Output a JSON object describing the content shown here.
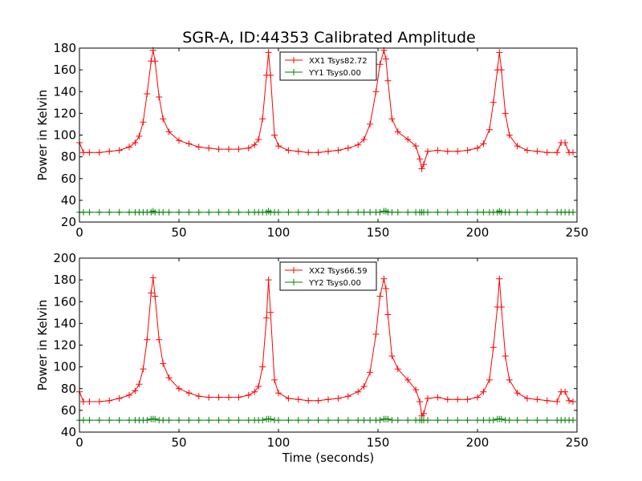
{
  "title": "SGR-A, ID:44353 Calibrated Amplitude",
  "chart_data": [
    {
      "type": "line",
      "ylabel": "Power in Kelvin",
      "xlabel": "",
      "xlim": [
        0,
        250
      ],
      "ylim": [
        20,
        180
      ],
      "xticks": [
        "0",
        "50",
        "100",
        "150",
        "200",
        "250"
      ],
      "yticks": [
        "20",
        "40",
        "60",
        "80",
        "100",
        "120",
        "140",
        "160",
        "180"
      ],
      "grid": false,
      "legend_position": "top-center",
      "x": [
        0,
        2,
        5,
        10,
        15,
        20,
        25,
        28,
        30,
        32,
        34,
        36,
        37,
        38,
        40,
        42,
        45,
        50,
        55,
        60,
        65,
        70,
        75,
        80,
        85,
        88,
        90,
        92,
        94,
        95,
        96,
        98,
        100,
        105,
        110,
        115,
        120,
        125,
        130,
        135,
        140,
        143,
        146,
        149,
        151,
        153,
        154,
        155,
        157,
        160,
        165,
        169,
        171,
        172,
        173,
        175,
        180,
        185,
        190,
        195,
        200,
        203,
        206,
        208,
        210,
        211,
        212,
        214,
        216,
        220,
        225,
        230,
        235,
        240,
        242,
        244,
        246,
        248
      ],
      "series": [
        {
          "name": "XX1 Tsys82.72",
          "color": "#ff0000",
          "values": [
            93,
            84,
            84,
            84,
            85,
            86,
            89,
            93,
            99,
            112,
            138,
            168,
            178,
            168,
            135,
            115,
            103,
            95,
            92,
            89,
            88,
            87,
            87,
            87,
            88,
            91,
            96,
            115,
            155,
            176,
            155,
            100,
            90,
            86,
            85,
            84,
            84,
            85,
            86,
            88,
            91,
            96,
            110,
            140,
            165,
            178,
            170,
            150,
            115,
            103,
            96,
            90,
            78,
            69,
            73,
            85,
            86,
            85,
            85,
            86,
            88,
            92,
            105,
            130,
            160,
            176,
            160,
            120,
            100,
            90,
            86,
            85,
            84,
            84,
            93,
            93,
            84,
            84
          ]
        },
        {
          "name": "YY1 Tsys0.00",
          "color": "#008000",
          "values": [
            29,
            29,
            29,
            29,
            29,
            29,
            29,
            29,
            29,
            29,
            29,
            29,
            30,
            29,
            29,
            29,
            29,
            29,
            29,
            29,
            29,
            29,
            29,
            29,
            29,
            29,
            29,
            29,
            29,
            30,
            29,
            29,
            29,
            29,
            29,
            29,
            29,
            29,
            29,
            29,
            29,
            29,
            29,
            29,
            29,
            30,
            30,
            29,
            29,
            29,
            29,
            29,
            29,
            29,
            29,
            29,
            29,
            29,
            29,
            29,
            29,
            29,
            29,
            29,
            29,
            30,
            29,
            29,
            29,
            29,
            29,
            29,
            29,
            29,
            29,
            29,
            29,
            29
          ]
        }
      ]
    },
    {
      "type": "line",
      "ylabel": "Power in Kelvin",
      "xlabel": "Time (seconds)",
      "xlim": [
        0,
        250
      ],
      "ylim": [
        40,
        200
      ],
      "xticks": [
        "0",
        "50",
        "100",
        "150",
        "200",
        "250"
      ],
      "yticks": [
        "40",
        "60",
        "80",
        "100",
        "120",
        "140",
        "160",
        "180",
        "200"
      ],
      "grid": false,
      "legend_position": "top-center",
      "x": [
        0,
        2,
        5,
        10,
        15,
        20,
        25,
        28,
        30,
        32,
        34,
        36,
        37,
        38,
        40,
        42,
        45,
        50,
        55,
        60,
        65,
        70,
        75,
        80,
        85,
        88,
        90,
        92,
        94,
        95,
        96,
        98,
        100,
        105,
        110,
        115,
        120,
        125,
        130,
        135,
        140,
        143,
        146,
        149,
        151,
        153,
        154,
        155,
        157,
        160,
        165,
        169,
        171,
        172,
        173,
        175,
        180,
        185,
        190,
        195,
        200,
        203,
        206,
        208,
        210,
        211,
        212,
        214,
        216,
        220,
        225,
        230,
        235,
        240,
        242,
        244,
        246,
        248
      ],
      "series": [
        {
          "name": "XX2 Tsys66.59",
          "color": "#ff0000",
          "values": [
            77,
            68,
            68,
            68,
            69,
            71,
            74,
            78,
            84,
            98,
            125,
            168,
            182,
            165,
            125,
            103,
            90,
            80,
            76,
            73,
            72,
            72,
            72,
            72,
            74,
            77,
            82,
            100,
            145,
            180,
            150,
            88,
            76,
            71,
            70,
            69,
            69,
            70,
            71,
            73,
            77,
            82,
            95,
            130,
            165,
            181,
            172,
            148,
            110,
            98,
            88,
            79,
            68,
            55,
            57,
            71,
            72,
            70,
            70,
            70,
            72,
            77,
            88,
            118,
            155,
            181,
            155,
            110,
            88,
            76,
            71,
            70,
            69,
            68,
            77,
            77,
            69,
            68
          ]
        },
        {
          "name": "YY2 Tsys0.00",
          "color": "#008000",
          "values": [
            51,
            51,
            51,
            51,
            51,
            51,
            51,
            51,
            51,
            51,
            51,
            52,
            52,
            52,
            51,
            51,
            51,
            51,
            51,
            51,
            51,
            51,
            51,
            51,
            51,
            51,
            51,
            51,
            52,
            52,
            52,
            51,
            51,
            51,
            51,
            51,
            51,
            51,
            51,
            51,
            51,
            51,
            51,
            51,
            51,
            52,
            52,
            52,
            51,
            51,
            51,
            51,
            51,
            51,
            51,
            51,
            51,
            51,
            51,
            51,
            51,
            51,
            51,
            51,
            52,
            52,
            52,
            51,
            51,
            51,
            51,
            51,
            51,
            51,
            51,
            51,
            51,
            51
          ]
        }
      ]
    }
  ]
}
